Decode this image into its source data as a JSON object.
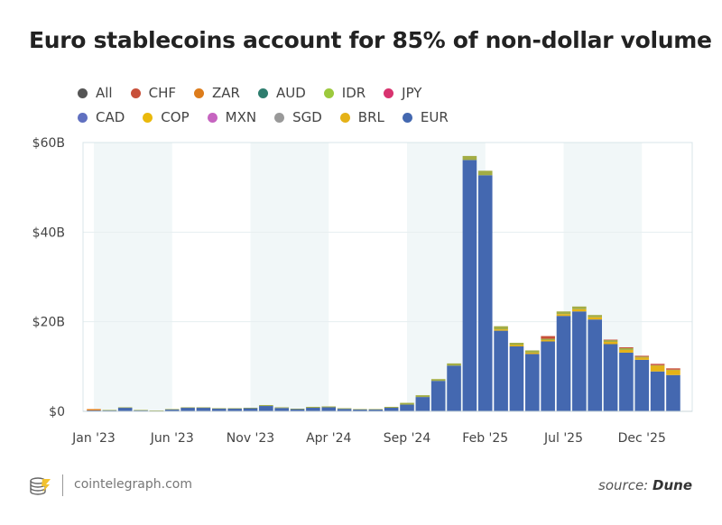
{
  "chart_data": {
    "type": "bar",
    "stacked": true,
    "title": "Euro stablecoins account for 85% of non-dollar volume",
    "xlabel": "",
    "ylabel": "",
    "ylim": [
      0,
      60
    ],
    "y_unit": "$B",
    "y_ticks": [
      "$0",
      "$20B",
      "$40B",
      "$60B"
    ],
    "y_tick_values": [
      0,
      20,
      40,
      60
    ],
    "grid": true,
    "legend_position": "top-left",
    "categories": [
      "Jan 2023",
      "Feb 2023",
      "Mar 2023",
      "Apr 2023",
      "May 2023",
      "Jun 2023",
      "Jul 2023",
      "Aug 2023",
      "Sep 2023",
      "Oct 2023",
      "Nov 2023",
      "Dec 2023",
      "Jan 2024",
      "Feb 2024",
      "Mar 2024",
      "Apr 2024",
      "May 2024",
      "Jun 2024",
      "Jul 2024",
      "Aug 2024",
      "Sep 2024",
      "Oct 2024",
      "Nov 2024",
      "Dec 2024",
      "Jan 2025",
      "Feb 2025",
      "Mar 2025",
      "Apr 2025",
      "May 2025",
      "Jun 2025",
      "Jul 2025",
      "Aug 2025",
      "Sep 2025",
      "Oct 2025",
      "Nov 2025",
      "Dec 2025",
      "Jan 2026",
      "Feb 2026"
    ],
    "x_tick_labels": [
      {
        "index": 0,
        "label": "Jan '23"
      },
      {
        "index": 5,
        "label": "Jun '23"
      },
      {
        "index": 10,
        "label": "Nov '23"
      },
      {
        "index": 15,
        "label": "Apr '24"
      },
      {
        "index": 20,
        "label": "Sep '24"
      },
      {
        "index": 25,
        "label": "Feb '25"
      },
      {
        "index": 30,
        "label": "Jul '25"
      },
      {
        "index": 35,
        "label": "Dec '25"
      }
    ],
    "legend": [
      {
        "name": "All",
        "color": "#555555"
      },
      {
        "name": "CHF",
        "color": "#c8503a"
      },
      {
        "name": "ZAR",
        "color": "#dd7c1b"
      },
      {
        "name": "AUD",
        "color": "#2e7d6e"
      },
      {
        "name": "IDR",
        "color": "#9cc93d"
      },
      {
        "name": "JPY",
        "color": "#d8336f"
      },
      {
        "name": "CAD",
        "color": "#6070c0"
      },
      {
        "name": "COP",
        "color": "#eab90c"
      },
      {
        "name": "MXN",
        "color": "#c664c0"
      },
      {
        "name": "SGD",
        "color": "#999999"
      },
      {
        "name": "BRL",
        "color": "#e5b217"
      },
      {
        "name": "EUR",
        "color": "#4468b0"
      }
    ],
    "series": [
      {
        "name": "EUR",
        "color": "#4468b0",
        "values": [
          0.2,
          0.25,
          0.8,
          0.25,
          0.15,
          0.4,
          0.8,
          0.8,
          0.6,
          0.6,
          0.7,
          1.2,
          0.75,
          0.5,
          0.8,
          0.9,
          0.55,
          0.4,
          0.4,
          0.8,
          1.5,
          3.2,
          6.8,
          10.2,
          56.1,
          52.7,
          18.0,
          14.5,
          12.8,
          15.6,
          21.3,
          22.3,
          20.5,
          15.0,
          13.1,
          11.5,
          8.9,
          8.1
        ]
      },
      {
        "name": "BRL",
        "color": "#e5b217",
        "values": [
          0,
          0,
          0,
          0,
          0,
          0,
          0,
          0,
          0,
          0,
          0,
          0,
          0,
          0,
          0,
          0,
          0,
          0,
          0,
          0,
          0,
          0,
          0,
          0,
          0,
          0,
          0.3,
          0.3,
          0.3,
          0.3,
          0.4,
          0.5,
          0.5,
          0.5,
          0.6,
          0.5,
          1.3,
          1.1
        ]
      },
      {
        "name": "ZAR",
        "color": "#dd7c1b",
        "values": [
          0.3,
          0,
          0,
          0,
          0,
          0,
          0,
          0,
          0,
          0,
          0,
          0,
          0,
          0,
          0,
          0,
          0,
          0,
          0,
          0,
          0,
          0,
          0,
          0,
          0,
          0,
          0,
          0,
          0,
          0,
          0,
          0,
          0,
          0,
          0,
          0,
          0,
          0
        ]
      },
      {
        "name": "IDR",
        "color": "#a3ad45",
        "values": [
          0,
          0.05,
          0.1,
          0.05,
          0.05,
          0.1,
          0.1,
          0.1,
          0.1,
          0.1,
          0.1,
          0.2,
          0.15,
          0.1,
          0.2,
          0.2,
          0.15,
          0.1,
          0.1,
          0.2,
          0.4,
          0.4,
          0.4,
          0.5,
          0.9,
          1.0,
          0.7,
          0.5,
          0.5,
          0.3,
          0.6,
          0.6,
          0.5,
          0.4,
          0.4,
          0.2,
          0.1,
          0.1
        ]
      },
      {
        "name": "CHF",
        "color": "#c8503a",
        "values": [
          0,
          0,
          0,
          0,
          0,
          0,
          0,
          0,
          0,
          0,
          0,
          0,
          0,
          0,
          0,
          0,
          0,
          0,
          0,
          0,
          0,
          0,
          0,
          0,
          0,
          0,
          0,
          0,
          0,
          0.6,
          0,
          0,
          0,
          0.1,
          0.2,
          0.2,
          0.3,
          0.3
        ]
      }
    ]
  },
  "footer": {
    "site": "cointelegraph.com",
    "source_prefix": "source:",
    "source_name": "Dune"
  }
}
